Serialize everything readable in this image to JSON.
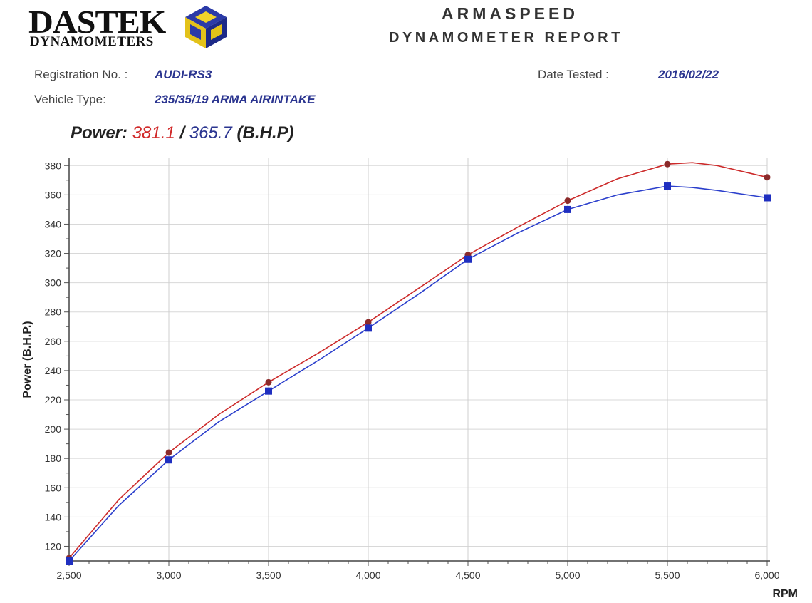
{
  "header": {
    "brand": "DASTEK",
    "brand_sub": "DYNAMOMETERS",
    "report_title": "ARMASPEED",
    "report_subtitle": "DYNAMOMETER REPORT"
  },
  "info": {
    "registration_label": "Registration No. :",
    "registration_value": "AUDI-RS3",
    "vehicle_label": "Vehicle Type:",
    "vehicle_value": "235/35/19 ARMA AIRINTAKE",
    "date_label": "Date Tested :",
    "date_value": "2016/02/22"
  },
  "power": {
    "label": "Power:",
    "value_red": "381.1",
    "separator": "/",
    "value_blue": "365.7",
    "unit": "(B.H.P)"
  },
  "chart_data": {
    "type": "line",
    "xlabel": "RPM",
    "ylabel": "Power (B.H.P.)",
    "xlim": [
      2500,
      6000
    ],
    "ylim": [
      110,
      385
    ],
    "x_ticks": [
      2500,
      3000,
      3500,
      4000,
      4500,
      5000,
      5500,
      6000
    ],
    "x_tick_labels": [
      "2,500",
      "3,000",
      "3,500",
      "4,000",
      "4,500",
      "5,000",
      "5,500",
      "6,000"
    ],
    "y_ticks": [
      120,
      140,
      160,
      180,
      200,
      220,
      240,
      260,
      280,
      300,
      320,
      340,
      360,
      380
    ],
    "grid": true,
    "series": [
      {
        "color": "#cc2a2a",
        "marker": "circle",
        "marker_color": "#8b2a2a",
        "x": [
          2500,
          2750,
          3000,
          3250,
          3500,
          3750,
          4000,
          4250,
          4500,
          4750,
          5000,
          5250,
          5500,
          5625,
          5750,
          6000
        ],
        "values": [
          112,
          152,
          184,
          210,
          232,
          252,
          273,
          296,
          319,
          338,
          356,
          371,
          381,
          382,
          380,
          372
        ],
        "marker_x": [
          2500,
          3000,
          3500,
          4000,
          4500,
          5000,
          5500,
          6000
        ],
        "marker_values": [
          112,
          184,
          232,
          273,
          319,
          356,
          381,
          372
        ]
      },
      {
        "color": "#2b3fcc",
        "marker": "square",
        "marker_color": "#1f2fc0",
        "x": [
          2500,
          2750,
          3000,
          3250,
          3500,
          3750,
          4000,
          4250,
          4500,
          4750,
          5000,
          5250,
          5500,
          5625,
          5750,
          6000
        ],
        "values": [
          110,
          148,
          179,
          205,
          226,
          247,
          269,
          292,
          316,
          334,
          350,
          360,
          366,
          365,
          363,
          358
        ],
        "marker_x": [
          2500,
          3000,
          3500,
          4000,
          4500,
          5000,
          5500,
          6000
        ],
        "marker_values": [
          110,
          179,
          226,
          269,
          316,
          350,
          366,
          358
        ]
      }
    ]
  }
}
